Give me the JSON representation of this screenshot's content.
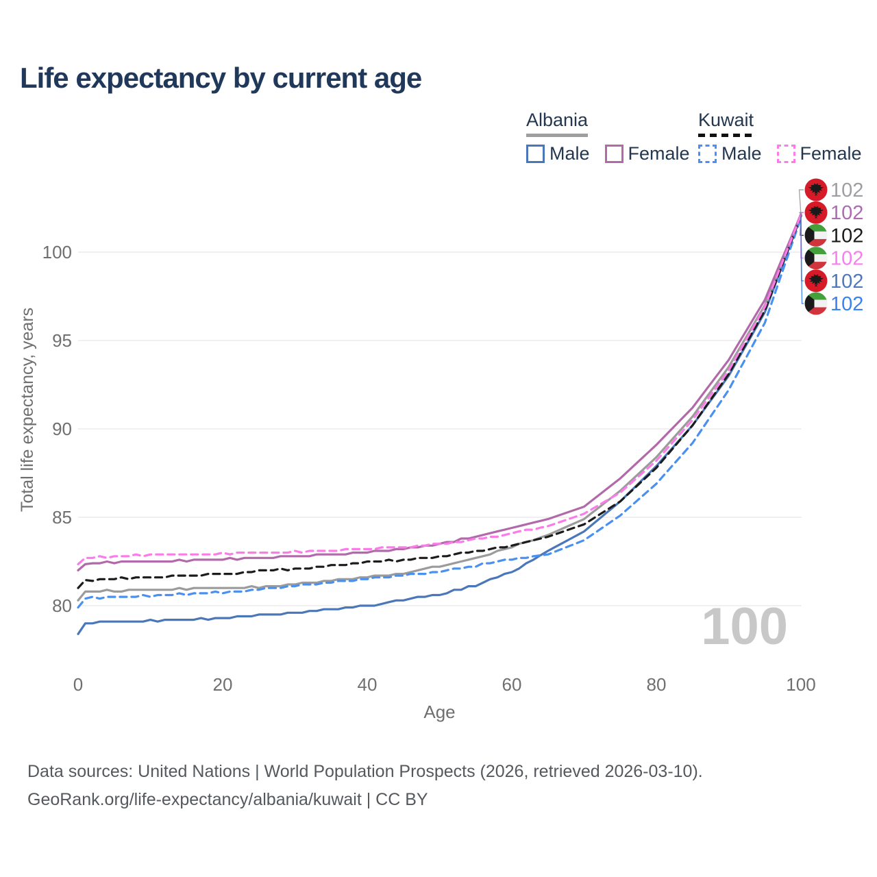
{
  "page": {
    "title": "Life expectancy by current age"
  },
  "colors": {
    "title": "#20395a",
    "axis_text": "#6f6f6f",
    "grid": "#e8e8e8",
    "watermark": "#c8c8c8",
    "legend_text": "#233750",
    "footer": "#55595d",
    "albania_flag_red": "#d71a28",
    "kuwait_green": "#44a03b",
    "kuwait_red": "#d0343c",
    "flag_black": "#1a1a1a"
  },
  "legend": {
    "groups": [
      {
        "name": "Albania",
        "underline_style": "solid",
        "underline_color": "#9e9e9e",
        "items": [
          {
            "label": "Male",
            "color": "#4a77b9",
            "dash": "solid"
          },
          {
            "label": "Female",
            "color": "#b269aa",
            "dash": "solid"
          }
        ]
      },
      {
        "name": "Kuwait",
        "underline_style": "dashed",
        "underline_color": "#111111",
        "items": [
          {
            "label": "Male",
            "color": "#4a90f0",
            "dash": "dashed"
          },
          {
            "label": "Female",
            "color": "#fb7ce8",
            "dash": "dashed"
          }
        ]
      }
    ]
  },
  "chart_data": {
    "type": "line",
    "title": "Life expectancy by current age",
    "xlabel": "Age",
    "ylabel": "Total life expectancy, years",
    "x_ticks": [
      0,
      20,
      40,
      60,
      80,
      100
    ],
    "y_ticks": [
      80,
      85,
      90,
      95,
      100
    ],
    "xlim": [
      0,
      100
    ],
    "ylim": [
      77.5,
      103.5
    ],
    "grid": "horizontal",
    "watermark": "100",
    "anchor_ages": [
      0,
      1,
      5,
      10,
      15,
      20,
      25,
      30,
      35,
      40,
      45,
      50,
      55,
      60,
      65,
      70,
      75,
      80,
      85,
      90,
      95,
      100
    ],
    "series": [
      {
        "name": "Albania Total",
        "country": "Albania",
        "sex": "Total",
        "flag": "al",
        "color": "#9b9b9b",
        "dash": "solid",
        "end_label": "102",
        "end_label_color": "#9e9ea2",
        "values": [
          80.3,
          80.8,
          80.85,
          80.9,
          80.95,
          81.0,
          81.05,
          81.2,
          81.4,
          81.6,
          81.85,
          82.2,
          82.7,
          83.3,
          84.0,
          84.9,
          86.5,
          88.4,
          90.7,
          93.5,
          97.0,
          102.1
        ]
      },
      {
        "name": "Albania Female",
        "country": "Albania",
        "sex": "Female",
        "flag": "al",
        "color": "#b269aa",
        "dash": "solid",
        "end_label": "102",
        "end_label_color": "#ad6caf",
        "values": [
          82.0,
          82.35,
          82.45,
          82.5,
          82.55,
          82.65,
          82.7,
          82.8,
          82.9,
          83.0,
          83.2,
          83.5,
          83.9,
          84.4,
          84.9,
          85.6,
          87.2,
          89.1,
          91.2,
          93.9,
          97.3,
          102.15
        ]
      },
      {
        "name": "Kuwait Total",
        "country": "Kuwait",
        "sex": "Total",
        "flag": "kw",
        "color": "#1c1c1c",
        "dash": "dashed",
        "end_label": "102",
        "end_label_color": "#1a1a1a",
        "values": [
          81.0,
          81.45,
          81.55,
          81.6,
          81.7,
          81.8,
          81.95,
          82.1,
          82.25,
          82.45,
          82.6,
          82.8,
          83.05,
          83.4,
          83.9,
          84.6,
          85.9,
          87.8,
          90.2,
          93.1,
          96.7,
          102.05
        ]
      },
      {
        "name": "Kuwait Female",
        "country": "Kuwait",
        "sex": "Female",
        "flag": "kw",
        "color": "#fb7ce8",
        "dash": "dashed",
        "end_label": "102",
        "end_label_color": "#f87df0",
        "values": [
          82.35,
          82.7,
          82.8,
          82.85,
          82.9,
          82.95,
          83.0,
          83.05,
          83.1,
          83.2,
          83.3,
          83.5,
          83.75,
          84.1,
          84.5,
          85.2,
          86.4,
          88.2,
          90.5,
          93.3,
          96.9,
          102.1
        ]
      },
      {
        "name": "Albania Male",
        "country": "Albania",
        "sex": "Male",
        "flag": "al",
        "color": "#4a77b9",
        "dash": "solid",
        "end_label": "102",
        "end_label_color": "#4d79bc",
        "values": [
          78.4,
          79.0,
          79.1,
          79.15,
          79.2,
          79.3,
          79.45,
          79.6,
          79.8,
          80.0,
          80.3,
          80.65,
          81.15,
          81.9,
          83.1,
          84.2,
          85.9,
          87.9,
          90.2,
          93.0,
          96.6,
          102.05
        ]
      },
      {
        "name": "Kuwait Male",
        "country": "Kuwait",
        "sex": "Male",
        "flag": "kw",
        "color": "#4a90f0",
        "dash": "dashed",
        "end_label": "102",
        "end_label_color": "#3b82f0",
        "values": [
          79.9,
          80.4,
          80.5,
          80.55,
          80.65,
          80.75,
          80.9,
          81.15,
          81.3,
          81.5,
          81.7,
          81.95,
          82.25,
          82.65,
          82.9,
          83.7,
          85.1,
          86.9,
          89.2,
          92.2,
          96.0,
          101.95
        ]
      }
    ],
    "legend_position": "top-right"
  },
  "footer": {
    "line1": "Data sources: United Nations | World Population Prospects (2026, retrieved 2026-03-10).",
    "line2": "GeoRank.org/life-expectancy/albania/kuwait | CC BY"
  }
}
